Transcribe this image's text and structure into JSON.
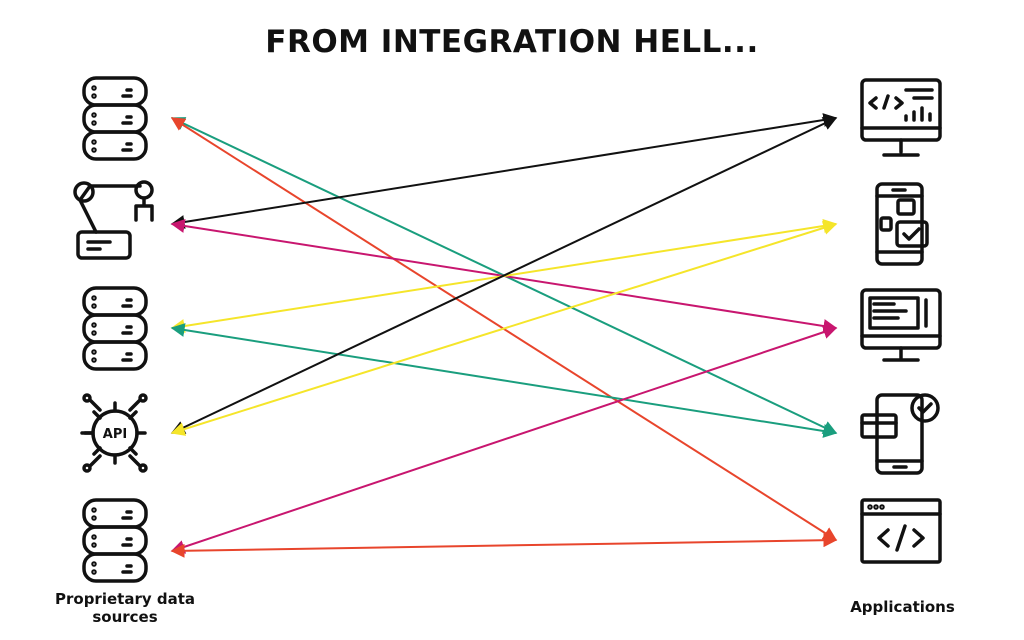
{
  "title": "FROM INTEGRATION HELL...",
  "left_label": "Proprietary data sources",
  "right_label": "Applications"
}
